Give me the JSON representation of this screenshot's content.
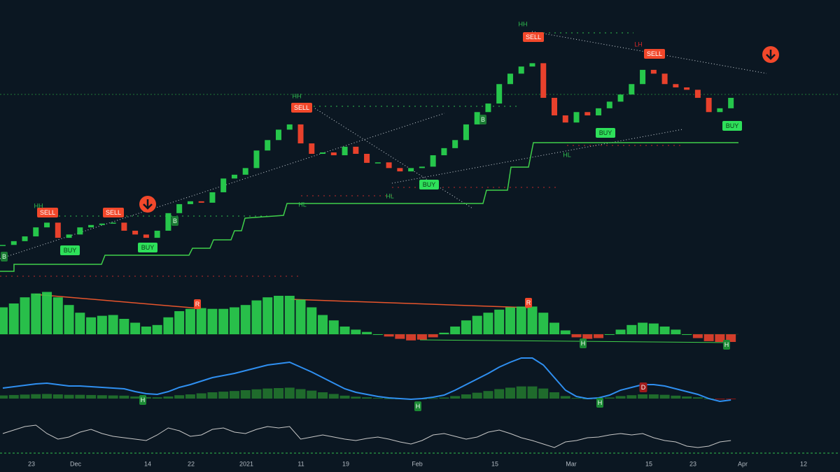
{
  "chart_data": {
    "type": "candlestick",
    "close": [
      18.8,
      19.6,
      20.6,
      22.5,
      23.5,
      20.3,
      21.0,
      22.5,
      23.0,
      23.3,
      23.5,
      21.8,
      21.0,
      20.3,
      21.8,
      25.5,
      27.4,
      28.0,
      27.7,
      29.9,
      32.8,
      33.6,
      35.0,
      38.7,
      40.9,
      43.1,
      44.2,
      40.2,
      38.0,
      38.3,
      37.7,
      39.5,
      38.0,
      36.1,
      36.2,
      35.0,
      34.3,
      35.0,
      35.3,
      37.7,
      39.2,
      40.9,
      44.2,
      46.8,
      48.6,
      52.7,
      54.9,
      56.4,
      57.1,
      49.8,
      46.1,
      44.6,
      46.8,
      46.1,
      47.6,
      49.0,
      50.5,
      52.7,
      55.7,
      54.9,
      52.7,
      52.0,
      51.5,
      49.8,
      46.8,
      47.6,
      49.8
    ],
    "ylim": [
      10,
      66
    ],
    "up_color": "#26c64b",
    "down_color": "#e8412c",
    "oscillator": {
      "values": [
        35,
        40,
        48,
        53,
        55,
        48,
        38,
        28,
        22,
        24,
        25,
        20,
        15,
        10,
        12,
        22,
        30,
        33,
        34,
        33,
        33,
        35,
        38,
        44,
        48,
        50,
        50,
        45,
        35,
        25,
        18,
        10,
        6,
        3,
        0,
        -3,
        -6,
        -8,
        -7,
        -4,
        2,
        10,
        18,
        24,
        28,
        32,
        35,
        36,
        36,
        28,
        15,
        5,
        -4,
        -6,
        -5,
        0,
        6,
        12,
        15,
        14,
        10,
        6,
        0,
        -5,
        -9,
        -10,
        -10
      ],
      "ylim": [
        -15,
        60
      ],
      "up_color": "#2bd14f",
      "down_color": "#e8412c"
    },
    "macd": {
      "values": [
        15,
        17,
        19,
        21,
        22,
        20,
        18,
        18,
        17,
        16,
        15,
        14,
        10,
        7,
        6,
        10,
        16,
        20,
        25,
        30,
        33,
        36,
        40,
        44,
        48,
        50,
        52,
        45,
        38,
        30,
        22,
        14,
        9,
        6,
        3,
        1,
        0,
        -1,
        0,
        2,
        5,
        12,
        20,
        28,
        36,
        45,
        52,
        58,
        58,
        48,
        30,
        12,
        3,
        0,
        1,
        5,
        12,
        16,
        20,
        20,
        18,
        14,
        10,
        6,
        0,
        -4,
        -2
      ],
      "ylim": [
        -30,
        70
      ],
      "color": "#2f8ff0",
      "up_color": "#1f6b2c",
      "down_color": "#8a1414"
    },
    "line": {
      "values": [
        30,
        35,
        40,
        42,
        30,
        22,
        25,
        32,
        36,
        30,
        26,
        24,
        22,
        20,
        28,
        38,
        34,
        26,
        28,
        36,
        38,
        32,
        30,
        36,
        40,
        38,
        40,
        22,
        25,
        28,
        25,
        22,
        20,
        23,
        25,
        22,
        18,
        15,
        20,
        28,
        30,
        26,
        22,
        25,
        32,
        35,
        30,
        24,
        20,
        15,
        10,
        18,
        20,
        24,
        25,
        28,
        30,
        28,
        30,
        24,
        20,
        18,
        12,
        10,
        12,
        18,
        20
      ],
      "ylim": [
        0,
        50
      ],
      "color": "#c8c8c8"
    },
    "xtick_labels": [
      "23",
      "Dec",
      "14",
      "22",
      "2021",
      "11",
      "19",
      "Feb",
      "15",
      "Mar",
      "15",
      "23",
      "Apr",
      "12"
    ],
    "labels": {
      "sell": "SELL",
      "buy": "BUY",
      "hh": "HH",
      "hl": "HL",
      "lh": "LH",
      "b": "B",
      "r": "R",
      "h": "H",
      "d": "D"
    }
  }
}
